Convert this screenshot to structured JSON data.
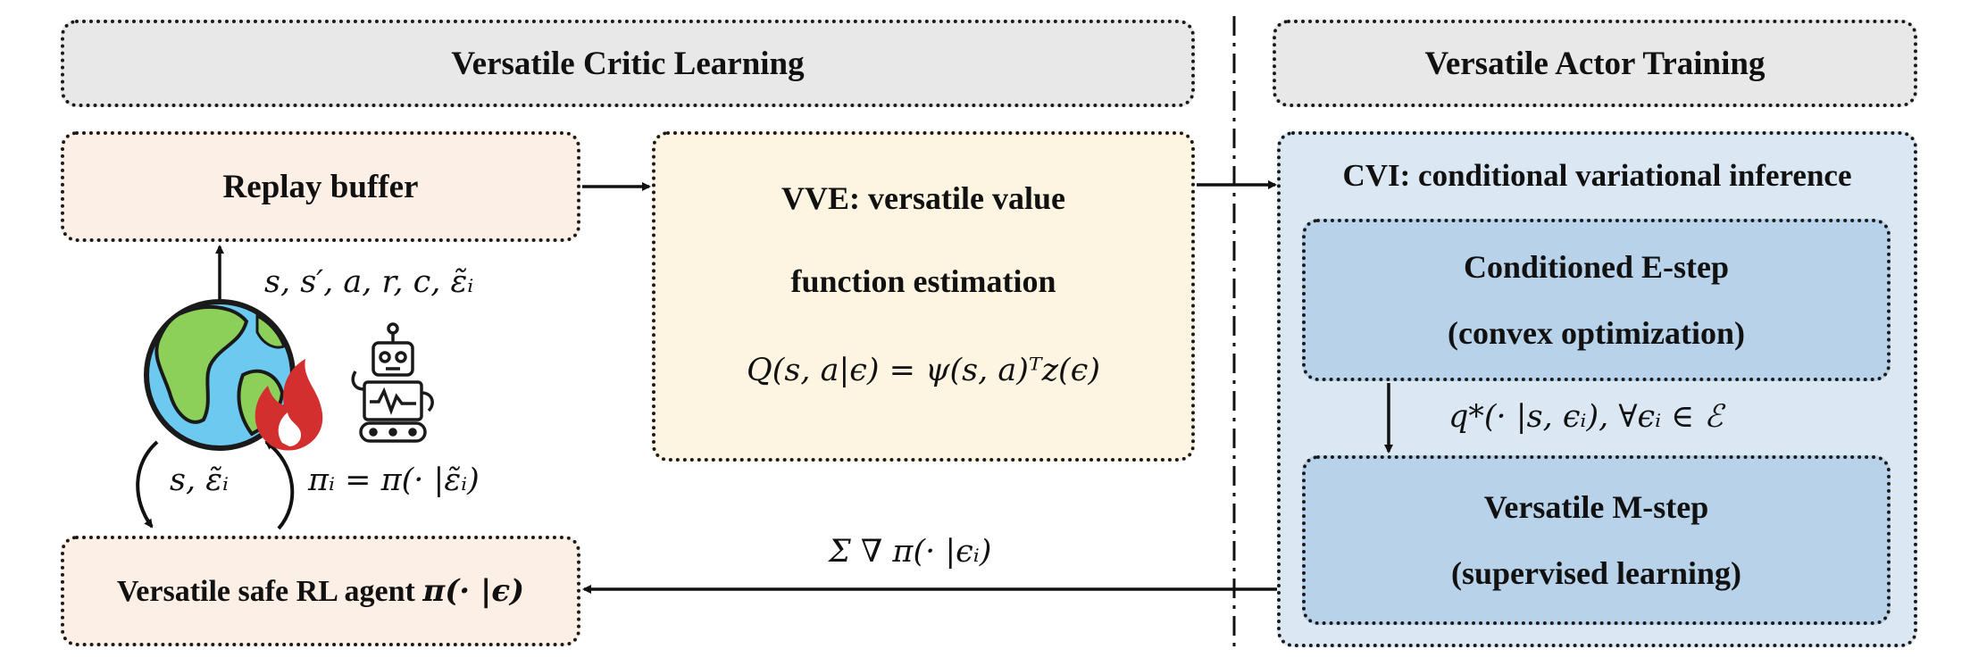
{
  "left_header": "Versatile Critic Learning",
  "right_header": "Versatile Actor Training",
  "replay_buffer": "Replay buffer",
  "vve": {
    "line1": "VVE: versatile value",
    "line2": "function estimation",
    "formula": "Q(s, a|ϵ) = ψ(s, a)ᵀz(ϵ)"
  },
  "cvi": {
    "title": "CVI: conditional variational inference",
    "estep_title": "Conditioned E-step",
    "estep_sub": "(convex optimization)",
    "mstep_title": "Versatile M-step",
    "mstep_sub": "(supervised learning)",
    "q_label": "q*(· |s, ϵᵢ), ∀ϵᵢ ∈ ℰ"
  },
  "agent": {
    "text": "Versatile safe RL agent ",
    "math": "π(· |ϵ)"
  },
  "labels": {
    "transition": "s, s′, a, r, c, ε̃ᵢ",
    "state_eps": "s, ε̃ᵢ",
    "policy": "πᵢ = π(· |ε̃ᵢ)",
    "gradient": "Σ ∇ π(· |ϵᵢ)"
  },
  "icons": {
    "world": "globe-icon",
    "fire": "fire-icon",
    "robot": "robot-icon"
  },
  "colors": {
    "header_gray": "#e8e8e8",
    "peach": "#fcefe6",
    "yellow": "#fdf5e1",
    "light_blue": "#dbe8f4",
    "mid_blue": "#b8d2e9"
  }
}
